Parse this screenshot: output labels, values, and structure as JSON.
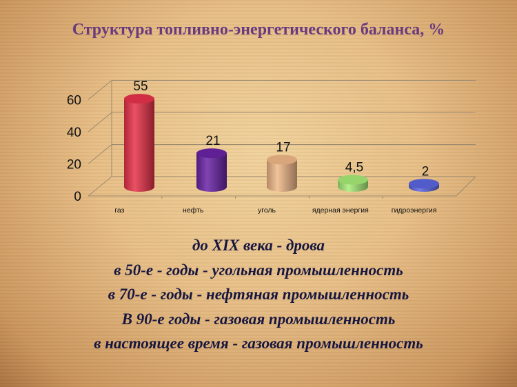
{
  "title": "Структура топливно-энергетического баланса, %",
  "chart_data": {
    "type": "bar",
    "style": "3d-cylinder",
    "title": "Структура топливно-энергетического баланса, %",
    "categories": [
      "газ",
      "нефть",
      "уголь",
      "ядерная энергия",
      "гидроэнергия"
    ],
    "values": [
      55,
      21,
      17,
      4.5,
      2
    ],
    "data_labels": [
      "55",
      "21",
      "17",
      "4,5",
      "2"
    ],
    "colors": [
      "#e8324a",
      "#6a24a6",
      "#f0b888",
      "#a8ec78",
      "#5a66e0"
    ],
    "ylim": [
      0,
      60
    ],
    "yticks": [
      0,
      20,
      40,
      60
    ],
    "grid": true,
    "xlabel": "",
    "ylabel": ""
  },
  "lines": [
    "до XIX века  - дрова",
    "в 50-е - годы - угольная промышленность",
    "в 70-е - годы - нефтяная промышленность",
    "В 90-е годы - газовая промышленность",
    "в настоящее время - газовая промышленность"
  ]
}
